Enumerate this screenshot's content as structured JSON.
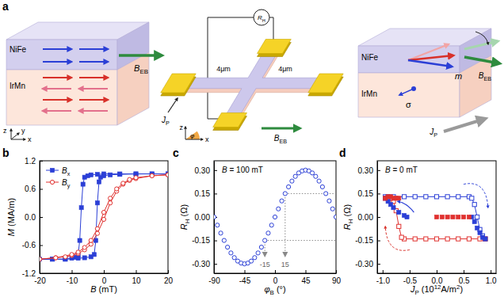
{
  "panel_labels": [
    "a",
    "b",
    "c",
    "d"
  ],
  "schematic": {
    "exchange_bias": {
      "top_layer": "NiFe",
      "bottom_layer": "IrMn",
      "field": [
        {
          "i": "B"
        },
        {
          "sub": "EB"
        }
      ],
      "axes": [
        "y",
        "z",
        "x"
      ]
    },
    "device": {
      "meter": [
        {
          "i": "R"
        },
        {
          "sub": "H"
        }
      ],
      "arm_widths": [
        "4μm",
        "4μm"
      ],
      "current": [
        {
          "i": "J"
        },
        {
          "sub": "P"
        }
      ],
      "field": [
        {
          "i": "B"
        },
        {
          "sub": "EB"
        }
      ],
      "angle_axes": [
        "z",
        "x"
      ],
      "angle": [
        {
          "i": "φ"
        }
      ]
    },
    "switching": {
      "top_layer": "NiFe",
      "bottom_layer": "IrMn",
      "field": [
        {
          "i": "B"
        },
        {
          "sub": "EB"
        }
      ],
      "magnetization": [
        {
          "i": "m"
        }
      ],
      "spin": "σ",
      "current": [
        {
          "i": "J"
        },
        {
          "sub": "P"
        }
      ]
    }
  },
  "chart_data": [
    {
      "type": "line",
      "xlabel": [
        {
          "i": "B"
        },
        " (mT)"
      ],
      "ylabel": [
        {
          "i": "M"
        },
        " (MA/m)"
      ],
      "xlim": [
        -20,
        20
      ],
      "xticks": [
        -20,
        -10,
        0,
        10,
        20
      ],
      "ylim": [
        -1.2,
        1.2
      ],
      "yticks": [
        -1.2,
        -0.6,
        {
          "value": 0,
          "label": "0.0"
        },
        0.6,
        1.2
      ],
      "legend": "upper left",
      "series": [
        {
          "name": [
            {
              "i": "B"
            },
            {
              "sub": "x"
            }
          ],
          "color": "#2b3fd6",
          "marker": "square",
          "x": [
            20,
            15,
            10,
            5,
            0,
            -2,
            -4,
            -5,
            -6,
            -6.5,
            -7,
            -7.5,
            -8,
            -9,
            -10,
            -12,
            -16,
            -20,
            -16,
            -12,
            -8,
            -6,
            -4,
            -3,
            -2.5,
            -2,
            -1.5,
            -1,
            0,
            2,
            5,
            10,
            15,
            20
          ],
          "values": [
            0.92,
            0.92,
            0.92,
            0.92,
            0.92,
            0.91,
            0.9,
            0.88,
            0.85,
            0.7,
            0.2,
            -0.5,
            -0.8,
            -0.86,
            -0.88,
            -0.9,
            -0.9,
            -0.9,
            -0.9,
            -0.9,
            -0.88,
            -0.87,
            -0.85,
            -0.8,
            -0.5,
            0.3,
            0.75,
            0.85,
            0.88,
            0.9,
            0.91,
            0.92,
            0.92,
            0.92
          ]
        },
        {
          "name": [
            {
              "i": "B"
            },
            {
              "sub": "y"
            }
          ],
          "color": "#e0312f",
          "marker": "circle-open",
          "x": [
            20,
            15,
            10,
            8,
            6,
            4,
            2,
            0,
            -2,
            -4,
            -6,
            -8,
            -10,
            -12,
            -15,
            -20,
            -15,
            -10,
            -8,
            -6,
            -4,
            -2,
            0,
            2,
            4,
            6,
            8,
            10,
            15,
            20
          ],
          "values": [
            0.9,
            0.88,
            0.82,
            0.78,
            0.7,
            0.55,
            0.3,
            -0.05,
            -0.35,
            -0.58,
            -0.7,
            -0.78,
            -0.82,
            -0.85,
            -0.87,
            -0.9,
            -0.87,
            -0.8,
            -0.75,
            -0.65,
            -0.5,
            -0.25,
            0.1,
            0.4,
            0.6,
            0.72,
            0.8,
            0.84,
            0.88,
            0.9
          ]
        }
      ]
    },
    {
      "type": "scatter",
      "field_label": [
        {
          "i": "B"
        },
        " = 100 mT"
      ],
      "xlabel": [
        {
          "i": "φ"
        },
        {
          "sub": "B"
        },
        " (°)"
      ],
      "ylabel": [
        {
          "i": "R"
        },
        {
          "sub": "H"
        },
        " (Ω)"
      ],
      "xlim": [
        -90,
        90
      ],
      "xticks": [
        -90,
        -45,
        0,
        45,
        90
      ],
      "ylim": [
        -0.36,
        0.36
      ],
      "yticks": [
        {
          "value": -0.3,
          "label": "-0.30"
        },
        {
          "value": -0.15,
          "label": "-0.15"
        },
        {
          "value": 0,
          "label": "0.00"
        },
        {
          "value": 0.15,
          "label": "0.15"
        },
        {
          "value": 0.3,
          "label": "0.30"
        }
      ],
      "guides": [
        {
          "x": -15,
          "y": -0.15,
          "label": "-15"
        },
        {
          "x": 15,
          "y": 0.15,
          "label": "15"
        }
      ],
      "series": [
        {
          "color": "#2b3fd6",
          "marker": "circle-open",
          "x": [
            -90,
            -85,
            -80,
            -75,
            -70,
            -65,
            -60,
            -55,
            -50,
            -45,
            -40,
            -35,
            -30,
            -25,
            -20,
            -15,
            -10,
            -5,
            0,
            5,
            10,
            15,
            20,
            25,
            30,
            35,
            40,
            45,
            50,
            55,
            60,
            65,
            70,
            75,
            80,
            85,
            90
          ],
          "values": [
            0,
            -0.052,
            -0.103,
            -0.15,
            -0.193,
            -0.23,
            -0.26,
            -0.282,
            -0.295,
            -0.3,
            -0.295,
            -0.282,
            -0.26,
            -0.23,
            -0.193,
            -0.15,
            -0.103,
            -0.052,
            0,
            0.052,
            0.103,
            0.15,
            0.193,
            0.23,
            0.26,
            0.282,
            0.295,
            0.3,
            0.295,
            0.282,
            0.26,
            0.23,
            0.193,
            0.15,
            0.103,
            0.052,
            0
          ]
        }
      ]
    },
    {
      "type": "scatter",
      "field_label": [
        {
          "i": "B"
        },
        " = 0 mT"
      ],
      "xlabel": [
        {
          "i": "J"
        },
        {
          "sub": "P"
        },
        " (10",
        {
          "sup": "12"
        },
        "A/m",
        {
          "sup": "2"
        },
        ")"
      ],
      "ylabel": [
        {
          "i": "R"
        },
        {
          "sub": "H"
        },
        " (Ω)"
      ],
      "xlim": [
        -1.1,
        1.1
      ],
      "xticks": [
        {
          "value": -1,
          "label": "-1.0"
        },
        {
          "value": -0.5,
          "label": "-0.5"
        },
        {
          "value": 0,
          "label": "0.0"
        },
        {
          "value": 0.5,
          "label": "0.5"
        },
        {
          "value": 1,
          "label": "1.0"
        }
      ],
      "ylim": [
        -0.36,
        0.36
      ],
      "yticks": [
        {
          "value": -0.3,
          "label": "-0.30"
        },
        {
          "value": -0.15,
          "label": "-0.15"
        },
        {
          "value": 0,
          "label": "0.00"
        },
        {
          "value": 0.15,
          "label": "0.15"
        },
        {
          "value": 0.3,
          "label": "0.30"
        }
      ],
      "series": [
        {
          "color": "#2b3fd6",
          "marker": "square-open",
          "line_style": "solid",
          "x": [
            -0.95,
            -0.9,
            -0.8,
            -0.6,
            -0.4,
            -0.2,
            0,
            0.2,
            0.4,
            0.6,
            0.65,
            0.7,
            0.75,
            0.8,
            0.85,
            0.9
          ],
          "values": [
            0.13,
            0.13,
            0.13,
            0.13,
            0.13,
            0.13,
            0.13,
            0.13,
            0.13,
            0.13,
            0.12,
            0.08,
            0,
            -0.08,
            -0.12,
            -0.14
          ]
        },
        {
          "color": "#e0312f",
          "marker": "square-open",
          "line_style": "solid",
          "x": [
            0.9,
            0.8,
            0.6,
            0.4,
            0.2,
            0,
            -0.2,
            -0.4,
            -0.6,
            -0.65,
            -0.7,
            -0.75,
            -0.8,
            -0.85,
            -0.9,
            -0.95
          ],
          "values": [
            -0.14,
            -0.14,
            -0.14,
            -0.14,
            -0.14,
            -0.14,
            -0.14,
            -0.14,
            -0.14,
            -0.13,
            -0.06,
            0.04,
            0.1,
            0.12,
            0.12,
            0.12
          ]
        },
        {
          "color": "#2b3fd6",
          "marker": "square",
          "x": [
            -0.95,
            -0.9,
            -0.85,
            -0.8,
            -0.7,
            -0.6,
            -0.55,
            0.65,
            0.7,
            0.75,
            0.8,
            0.85,
            0.9
          ],
          "values": [
            0.12,
            0.1,
            0.08,
            0.06,
            0.03,
            0.01,
            0,
            0,
            -0.03,
            -0.07,
            -0.1,
            -0.13,
            -0.14
          ]
        },
        {
          "color": "#e0312f",
          "marker": "square",
          "x": [
            -0.95,
            -0.9,
            -0.85,
            -0.8,
            -0.75,
            -0.7,
            0,
            0.1,
            0.2,
            0.3,
            0.4,
            0.5,
            0.6
          ],
          "values": [
            0.12,
            0.13,
            0.13,
            0.12,
            0.12,
            0.12,
            0,
            0,
            0,
            0,
            0,
            0,
            0
          ]
        }
      ]
    }
  ]
}
